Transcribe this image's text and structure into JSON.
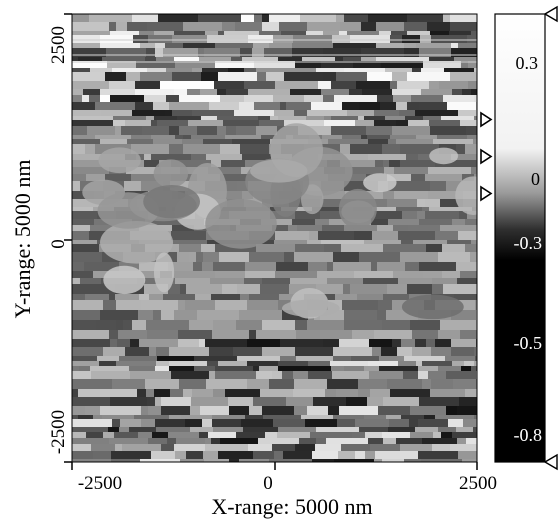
{
  "figure": {
    "x_axis_label": "X-range: 5000 nm",
    "y_axis_label": "Y-range: 5000 nm",
    "x_ticks": [
      "-2500",
      "0",
      "2500"
    ],
    "y_ticks": [
      "2500",
      "0",
      "-2500"
    ],
    "colorbar_ticks": [
      "0.3",
      "0",
      "-0.3",
      "-0.5",
      "-0.8"
    ],
    "markers": [
      "right-edge-marker",
      "right-edge-marker",
      "right-edge-marker",
      "colorbar-top-marker",
      "colorbar-bottom-marker"
    ],
    "colormap": {
      "low": "#000000",
      "high": "#ffffff"
    }
  }
}
